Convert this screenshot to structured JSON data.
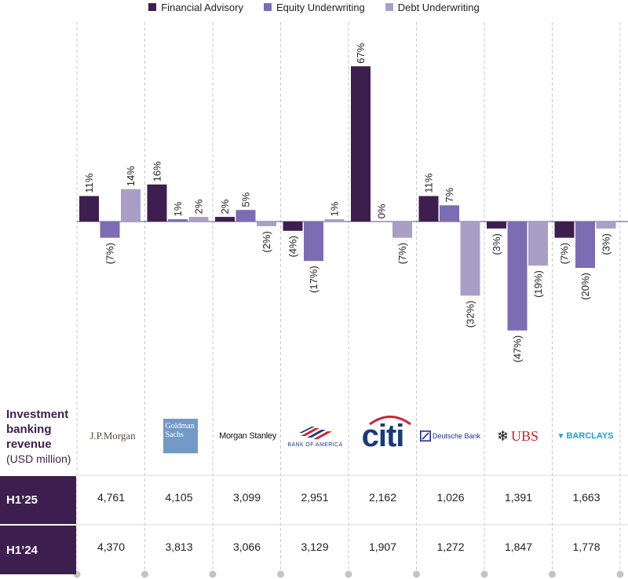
{
  "chart_data": {
    "type": "bar",
    "categories": [
      "J.P.Morgan",
      "Goldman Sachs",
      "Morgan Stanley",
      "Bank of America",
      "citi",
      "Deutsche Bank",
      "UBS",
      "BARCLAYS"
    ],
    "series": [
      {
        "name": "Financial Advisory",
        "values": [
          11,
          16,
          2,
          -4,
          67,
          11,
          -3,
          -7
        ],
        "labels": [
          "11%",
          "16%",
          "2%",
          "(4%)",
          "67%",
          "11%",
          "(3%)",
          "(7%)"
        ]
      },
      {
        "name": "Equity Underwriting",
        "values": [
          -7,
          1,
          5,
          -17,
          0,
          7,
          -47,
          -20
        ],
        "labels": [
          "(7%)",
          "1%",
          "5%",
          "(17%)",
          "0%",
          "7%",
          "(47%)",
          "(20%)"
        ]
      },
      {
        "name": "Debt Underwriting",
        "values": [
          14,
          2,
          -2,
          1,
          -7,
          -32,
          -19,
          -3
        ],
        "labels": [
          "14%",
          "2%",
          "(2%)",
          "1%",
          "(7%)",
          "(32%)",
          "(19%)",
          "(3%)"
        ]
      }
    ],
    "colors": [
      "#3e1e4e",
      "#7b6cb3",
      "#a99fc6"
    ],
    "legend_position": "top-center"
  },
  "table": {
    "title": "Investment banking revenue",
    "unit": "(USD million)",
    "rows": [
      {
        "label": "H1’25",
        "values": [
          "4,761",
          "4,105",
          "3,099",
          "2,951",
          "2,162",
          "1,026",
          "1,391",
          "1,663"
        ]
      },
      {
        "label": "H1’24",
        "values": [
          "4,370",
          "3,813",
          "3,066",
          "3,129",
          "1,907",
          "1,272",
          "1,847",
          "1,778"
        ]
      }
    ]
  },
  "logos": {
    "jpm": "J.P.Morgan",
    "gs_line1": "Goldman",
    "gs_line2": "Sachs",
    "ms": "Morgan Stanley",
    "boa": "BANK OF AMERICA",
    "citi": "citi",
    "db": "Deutsche Bank",
    "ubs": "UBS",
    "barclays": "BARCLAYS"
  }
}
